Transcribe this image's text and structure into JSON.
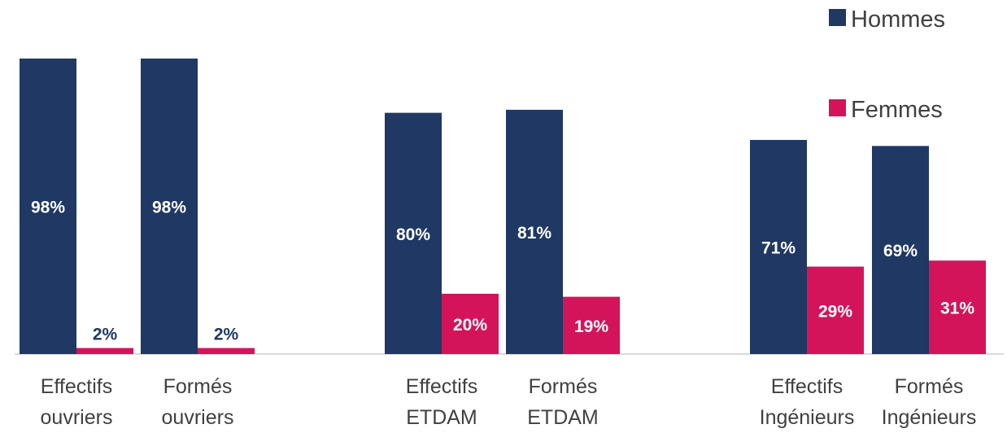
{
  "chart_data": {
    "type": "bar",
    "categories": [
      [
        "Effectifs",
        "ouvriers"
      ],
      [
        "Formés",
        "ouvriers"
      ],
      [
        "Effectifs",
        "ETDAM"
      ],
      [
        "Formés",
        "ETDAM"
      ],
      [
        "Effectifs",
        "Ingénieurs"
      ],
      [
        "Formés",
        "Ingénieurs"
      ]
    ],
    "series": [
      {
        "name": "Hommes",
        "color": "#1f3864",
        "values": [
          98,
          98,
          80,
          81,
          71,
          69
        ],
        "labels": [
          "98%",
          "98%",
          "80%",
          "81%",
          "71%",
          "69%"
        ]
      },
      {
        "name": "Femmes",
        "color": "#d4145a",
        "values": [
          2,
          2,
          20,
          19,
          29,
          31
        ],
        "labels": [
          "2%",
          "2%",
          "20%",
          "19%",
          "29%",
          "31%"
        ]
      }
    ],
    "ylim": [
      0,
      100
    ],
    "grid": false,
    "legend": "top-right"
  }
}
